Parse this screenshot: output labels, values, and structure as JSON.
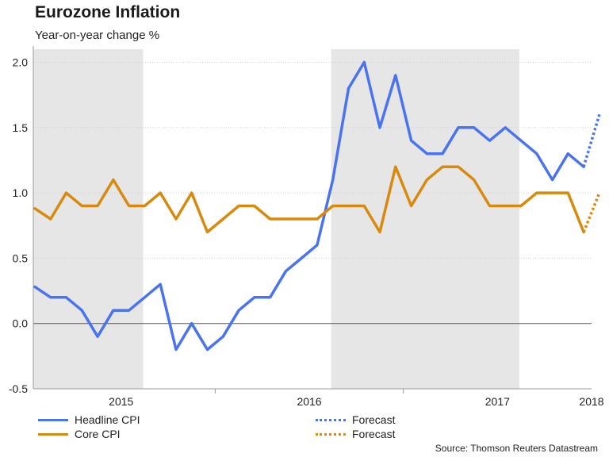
{
  "chart_data": {
    "type": "line",
    "title": "Eurozone Inflation",
    "subtitle": "Year-on-year change %",
    "xlabel": "",
    "ylabel": "",
    "ylim": [
      -0.5,
      2.1
    ],
    "yticks": [
      -0.5,
      0.0,
      0.5,
      1.0,
      1.5,
      2.0
    ],
    "ytick_labels": [
      "-0.5",
      "0.0",
      "0.5",
      "1.0",
      "1.5",
      "2.0"
    ],
    "x_period_labels": [
      {
        "label": "2015",
        "center_month": 5.5
      },
      {
        "label": "2016",
        "center_month": 17.5
      },
      {
        "label": "2017",
        "center_month": 29.5
      },
      {
        "label": "2018",
        "center_month": 35.5
      }
    ],
    "x_separators_month": [
      12,
      24,
      36
    ],
    "xlim_month": [
      -0.1,
      35.5
    ],
    "shaded_ranges_month": [
      [
        -0.1,
        6.9
      ],
      [
        18.9,
        30.9
      ]
    ],
    "grid": true,
    "series": [
      {
        "name": "Headline CPI",
        "color": "#4a73f0",
        "style": "solid",
        "start_month": 0,
        "values": [
          0.28,
          0.2,
          0.2,
          0.1,
          -0.1,
          0.1,
          0.1,
          0.2,
          0.3,
          -0.2,
          0.0,
          -0.2,
          -0.1,
          0.1,
          0.2,
          0.2,
          0.4,
          0.5,
          0.6,
          1.1,
          1.8,
          2.0,
          1.5,
          1.9,
          1.4,
          1.3,
          1.3,
          1.5,
          1.5,
          1.4,
          1.5,
          1.4,
          1.3,
          1.1,
          1.3,
          1.2
        ]
      },
      {
        "name": "Core CPI",
        "color": "#d88a0e",
        "style": "solid",
        "start_month": 0,
        "values": [
          0.88,
          0.8,
          1.0,
          0.9,
          0.9,
          1.1,
          0.9,
          0.9,
          1.0,
          0.8,
          1.0,
          0.7,
          0.8,
          0.9,
          0.9,
          0.8,
          0.8,
          0.8,
          0.8,
          0.9,
          0.9,
          0.9,
          0.7,
          1.2,
          0.9,
          1.1,
          1.2,
          1.2,
          1.1,
          0.9,
          0.9,
          0.9,
          1.0,
          1.0,
          1.0,
          0.7
        ]
      },
      {
        "name": "Forecast",
        "color": "#4a73f0",
        "style": "dotted",
        "start_month": 35,
        "values": [
          1.2,
          1.6
        ]
      },
      {
        "name": "Forecast",
        "color": "#d88a0e",
        "style": "dotted",
        "start_month": 35,
        "values": [
          0.7,
          1.0
        ]
      }
    ]
  },
  "legend": [
    {
      "label": "Headline CPI",
      "color": "#4a73f0",
      "style": "solid"
    },
    {
      "label": "Core CPI",
      "color": "#d88a0e",
      "style": "solid"
    },
    {
      "label": "Forecast",
      "color": "#4a73f0",
      "style": "dotted"
    },
    {
      "label": "Forecast",
      "color": "#d88a0e",
      "style": "dotted"
    }
  ],
  "source": "Source: Thomson Reuters Datastream"
}
